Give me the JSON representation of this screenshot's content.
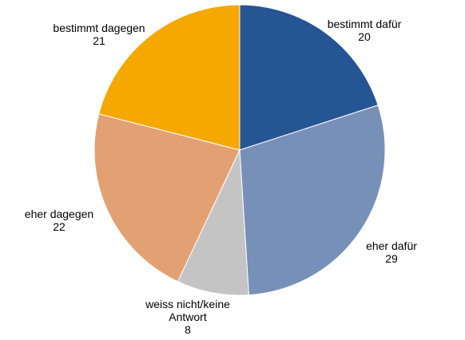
{
  "chart_data": {
    "type": "pie",
    "start_angle_deg": 0,
    "direction": "clockwise",
    "slices": [
      {
        "label": [
          "bestimmt dafür"
        ],
        "value": 20,
        "color": "#255593"
      },
      {
        "label": [
          "eher dafür"
        ],
        "value": 29,
        "color": "#7790b7"
      },
      {
        "label": [
          "weiss nicht/keine",
          "Antwort"
        ],
        "value": 8,
        "color": "#c4c4c4"
      },
      {
        "label": [
          "eher dagegen"
        ],
        "value": 22,
        "color": "#e3a073"
      },
      {
        "label": [
          "bestimmt dagegen"
        ],
        "value": 21,
        "color": "#f5a800"
      }
    ],
    "legend": "none",
    "title": ""
  }
}
